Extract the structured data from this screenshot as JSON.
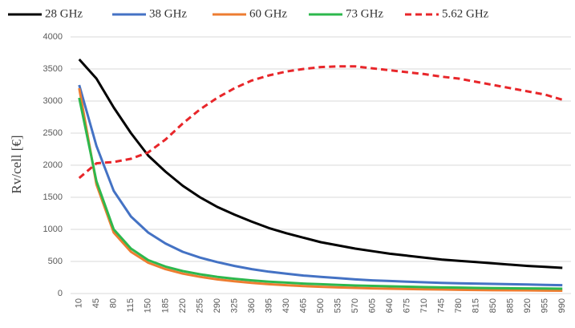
{
  "chart_data": {
    "type": "line",
    "y_label": "Rv/cell [€]",
    "categories": [
      10,
      45,
      80,
      115,
      150,
      185,
      220,
      255,
      290,
      325,
      360,
      395,
      430,
      465,
      500,
      535,
      570,
      605,
      640,
      675,
      710,
      745,
      780,
      815,
      850,
      885,
      920,
      955,
      990
    ],
    "series": [
      {
        "name": "28 GHz",
        "color": "#000000",
        "dashed": false,
        "values": [
          3650,
          3350,
          2900,
          2500,
          2150,
          1900,
          1680,
          1500,
          1350,
          1230,
          1120,
          1020,
          940,
          870,
          800,
          750,
          700,
          660,
          620,
          590,
          560,
          530,
          510,
          490,
          470,
          450,
          430,
          415,
          400
        ]
      },
      {
        "name": "38 GHz",
        "color": "#4472c4",
        "dashed": false,
        "values": [
          3250,
          2300,
          1600,
          1200,
          950,
          780,
          650,
          560,
          490,
          430,
          380,
          340,
          310,
          280,
          260,
          240,
          220,
          205,
          195,
          185,
          175,
          165,
          160,
          155,
          150,
          145,
          140,
          135,
          130
        ]
      },
      {
        "name": "60 GHz",
        "color": "#ed7d31",
        "dashed": false,
        "values": [
          3200,
          1700,
          950,
          650,
          480,
          380,
          310,
          260,
          220,
          190,
          165,
          145,
          130,
          115,
          105,
          95,
          88,
          80,
          75,
          70,
          65,
          62,
          58,
          55,
          52,
          50,
          48,
          46,
          44
        ]
      },
      {
        "name": "73 GHz",
        "color": "#2db84d",
        "dashed": false,
        "values": [
          3050,
          1750,
          1000,
          700,
          520,
          420,
          350,
          300,
          260,
          230,
          205,
          185,
          170,
          155,
          145,
          135,
          125,
          118,
          112,
          106,
          100,
          96,
          92,
          88,
          85,
          82,
          80,
          78,
          75
        ]
      },
      {
        "name": "5.62 GHz",
        "color": "#e8262a",
        "dashed": true,
        "values": [
          1800,
          2030,
          2050,
          2100,
          2200,
          2400,
          2650,
          2870,
          3050,
          3200,
          3320,
          3400,
          3460,
          3500,
          3530,
          3540,
          3540,
          3510,
          3480,
          3450,
          3420,
          3380,
          3350,
          3300,
          3250,
          3200,
          3150,
          3100,
          3020
        ]
      }
    ],
    "ylim": [
      0,
      4000
    ],
    "yticks": [
      0,
      500,
      1000,
      1500,
      2000,
      2500,
      3000,
      3500,
      4000
    ],
    "grid": true
  }
}
